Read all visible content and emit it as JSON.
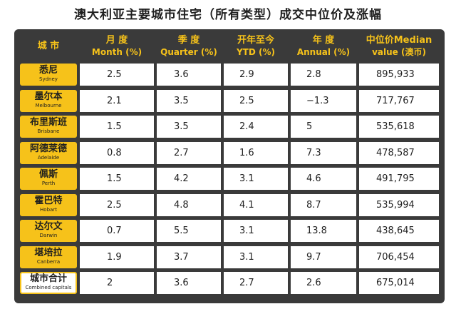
{
  "title": "澳大利亚主要城市住宅（所有类型）成交中位价及涨幅",
  "headers": {
    "city": {
      "zh": "城 市",
      "en": ""
    },
    "month": {
      "zh": "月 度",
      "en": "Month (%)"
    },
    "quarter": {
      "zh": "季 度",
      "en": "Quarter (%)"
    },
    "ytd": {
      "zh": "开年至今",
      "en": "YTD (%)"
    },
    "annual": {
      "zh": "年 度",
      "en": "Annual (%)"
    },
    "median": {
      "zh": "中位价Median",
      "en": "value (澳币)"
    }
  },
  "colors": {
    "accent": "#f6c21a",
    "panel": "#3a3a3a"
  },
  "chart_data": {
    "type": "table",
    "title": "澳大利亚主要城市住宅（所有类型）成交中位价及涨幅",
    "columns": [
      "城 市",
      "月 度 Month (%)",
      "季 度 Quarter (%)",
      "开年至今 YTD (%)",
      "年 度 Annual (%)",
      "中位价Median value (澳币)"
    ],
    "rows": [
      {
        "zh": "悉尼",
        "en": "Sydney",
        "month": "2.5",
        "quarter": "3.6",
        "ytd": "2.9",
        "annual": "2.8",
        "median": "895,933"
      },
      {
        "zh": "墨尔本",
        "en": "Melbourne",
        "month": "2.1",
        "quarter": "3.5",
        "ytd": "2.5",
        "annual": "−1.3",
        "median": "717,767"
      },
      {
        "zh": "布里斯班",
        "en": "Brisbane",
        "month": "1.5",
        "quarter": "3.5",
        "ytd": "2.4",
        "annual": "5",
        "median": "535,618"
      },
      {
        "zh": "阿德莱德",
        "en": "Adelaide",
        "month": "0.8",
        "quarter": "2.7",
        "ytd": "1.6",
        "annual": "7.3",
        "median": "478,587"
      },
      {
        "zh": "佩斯",
        "en": "Perth",
        "month": "1.5",
        "quarter": "4.2",
        "ytd": "3.1",
        "annual": "4.6",
        "median": "491,795"
      },
      {
        "zh": "霍巴特",
        "en": "Hobart",
        "month": "2.5",
        "quarter": "4.8",
        "ytd": "4.1",
        "annual": "8.7",
        "median": "535,994"
      },
      {
        "zh": "达尔文",
        "en": "Darwin",
        "month": "0.7",
        "quarter": "5.5",
        "ytd": "3.1",
        "annual": "13.8",
        "median": "438,645"
      },
      {
        "zh": "堪培拉",
        "en": "Canberra",
        "month": "1.9",
        "quarter": "3.7",
        "ytd": "3.1",
        "annual": "9.7",
        "median": "706,454"
      },
      {
        "zh": "城市合计",
        "en": "Combined capitals",
        "month": "2",
        "quarter": "3.6",
        "ytd": "2.7",
        "annual": "2.6",
        "median": "675,014"
      }
    ]
  }
}
